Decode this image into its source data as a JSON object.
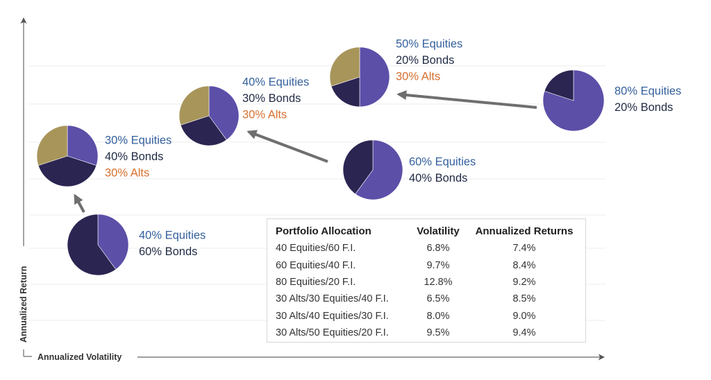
{
  "chart_data": {
    "type": "pie",
    "xlabel": "Annualized Volatility",
    "ylabel": "Annualized Return",
    "colors": {
      "equities": "#5b4fa8",
      "bonds": "#2b2552",
      "alts": "#a8955a",
      "label_equities": "#34609c",
      "label_bonds": "#1f2a44",
      "label_alts": "#d6702f"
    },
    "portfolios": [
      {
        "id": "40-60",
        "slices": [
          {
            "category": "equities",
            "value": 40,
            "label": "40% Equities"
          },
          {
            "category": "bonds",
            "value": 60,
            "label": "60% Bonds"
          }
        ]
      },
      {
        "id": "30-40-30",
        "slices": [
          {
            "category": "equities",
            "value": 30,
            "label": "30% Equities"
          },
          {
            "category": "bonds",
            "value": 40,
            "label": "40% Bonds"
          },
          {
            "category": "alts",
            "value": 30,
            "label": "30% Alts"
          }
        ]
      },
      {
        "id": "40-30-30",
        "slices": [
          {
            "category": "equities",
            "value": 40,
            "label": "40% Equities"
          },
          {
            "category": "bonds",
            "value": 30,
            "label": "30% Bonds"
          },
          {
            "category": "alts",
            "value": 30,
            "label": "30% Alts"
          }
        ]
      },
      {
        "id": "50-20-30",
        "slices": [
          {
            "category": "equities",
            "value": 50,
            "label": "50% Equities"
          },
          {
            "category": "bonds",
            "value": 20,
            "label": "20% Bonds"
          },
          {
            "category": "alts",
            "value": 30,
            "label": "30% Alts"
          }
        ]
      },
      {
        "id": "60-40",
        "slices": [
          {
            "category": "equities",
            "value": 60,
            "label": "60% Equities"
          },
          {
            "category": "bonds",
            "value": 40,
            "label": "40% Bonds"
          }
        ]
      },
      {
        "id": "80-20",
        "slices": [
          {
            "category": "equities",
            "value": 80,
            "label": "80% Equities"
          },
          {
            "category": "bonds",
            "value": 20,
            "label": "20% Bonds"
          }
        ]
      }
    ],
    "arrows": [
      {
        "from": "40-60",
        "to": "30-40-30"
      },
      {
        "from": "60-40",
        "to": "40-30-30"
      },
      {
        "from": "80-20",
        "to": "50-20-30"
      }
    ],
    "table": {
      "headers": [
        "Portfolio Allocation",
        "Volatility",
        "Annualized Returns"
      ],
      "rows": [
        [
          "40 Equities/60 F.I.",
          "6.8%",
          "7.4%"
        ],
        [
          "60 Equities/40 F.I.",
          "9.7%",
          "8.4%"
        ],
        [
          "80 Equities/20 F.I.",
          "12.8%",
          "9.2%"
        ],
        [
          "30 Alts/30 Equities/40 F.I.",
          "6.5%",
          "8.5%"
        ],
        [
          "30 Alts/40 Equities/30 F.I.",
          "8.0%",
          "9.0%"
        ],
        [
          "30 Alts/50 Equities/20 F.I.",
          "9.5%",
          "9.4%"
        ]
      ]
    }
  }
}
